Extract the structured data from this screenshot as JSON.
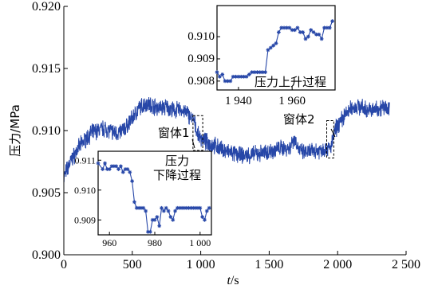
{
  "chart_data": [
    {
      "type": "line",
      "xlabel_italic": "t",
      "xlabel_unit": "/s",
      "ylabel": "压力/MPa",
      "xlim": [
        0,
        2500
      ],
      "ylim": [
        0.9,
        0.92
      ],
      "x_ticks": [
        0,
        500,
        1000,
        1500,
        2000,
        2500
      ],
      "x_tick_labels": [
        "0",
        "500",
        "1 000",
        "1 500",
        "2 000",
        "2 500"
      ],
      "y_ticks": [
        0.9,
        0.905,
        0.91,
        0.915,
        0.92
      ],
      "y_tick_labels": [
        "0.900",
        "0.905",
        "0.910",
        "0.915",
        "0.920"
      ],
      "series": [
        {
          "color": "#2747a8",
          "x": [
            0,
            20,
            50,
            100,
            150,
            200,
            250,
            300,
            350,
            400,
            450,
            500,
            550,
            600,
            650,
            700,
            750,
            800,
            850,
            900,
            950,
            980,
            1000,
            1050,
            1100,
            1150,
            1200,
            1250,
            1300,
            1350,
            1400,
            1450,
            1500,
            1550,
            1600,
            1650,
            1680,
            1700,
            1720,
            1750,
            1800,
            1850,
            1900,
            1950,
            1960,
            1980,
            2000,
            2050,
            2100,
            2150,
            2200,
            2250,
            2300,
            2350,
            2380
          ],
          "y": [
            0.9062,
            0.9068,
            0.9075,
            0.9085,
            0.9092,
            0.9098,
            0.91,
            0.9102,
            0.9099,
            0.9098,
            0.9102,
            0.911,
            0.9118,
            0.9122,
            0.912,
            0.9118,
            0.9119,
            0.9116,
            0.9117,
            0.9114,
            0.9108,
            0.9096,
            0.9094,
            0.909,
            0.9088,
            0.9085,
            0.9083,
            0.9081,
            0.908,
            0.908,
            0.9081,
            0.9082,
            0.9083,
            0.9085,
            0.9086,
            0.9086,
            0.9094,
            0.909,
            0.9084,
            0.9082,
            0.9083,
            0.9084,
            0.9085,
            0.9086,
            0.909,
            0.91,
            0.9104,
            0.9112,
            0.9118,
            0.912,
            0.9117,
            0.9116,
            0.9118,
            0.9119,
            0.9118
          ]
        }
      ],
      "annotations": [
        {
          "text": "窗体1",
          "x_range": [
            955,
            1003
          ]
        },
        {
          "text": "窗体2",
          "x_range": [
            1932,
            1972
          ]
        }
      ]
    },
    {
      "type": "line",
      "inset": "lower",
      "text": [
        "压力",
        "下降过程"
      ],
      "xlim": [
        955,
        1005
      ],
      "ylim": [
        0.9085,
        0.9113
      ],
      "x_ticks": [
        960,
        980,
        1000
      ],
      "x_tick_labels": [
        "960",
        "980",
        "1 000"
      ],
      "y_ticks": [
        0.909,
        0.91,
        0.911
      ],
      "y_tick_labels": [
        "0.909",
        "0.910",
        "0.911"
      ],
      "series": [
        {
          "color": "#2747a8",
          "marker": "star",
          "x": [
            955,
            957,
            958,
            959,
            960,
            961,
            962,
            963,
            964,
            965,
            966,
            967,
            968,
            969,
            970,
            971,
            972,
            973,
            974,
            975,
            976,
            977,
            978,
            979,
            980,
            981,
            982,
            983,
            984,
            985,
            986,
            987,
            988,
            989,
            990,
            991,
            992,
            993,
            994,
            995,
            996,
            997,
            998,
            999,
            1000,
            1001,
            1002,
            1003,
            1004
          ],
          "y": [
            0.9109,
            0.9107,
            0.9109,
            0.9107,
            0.9107,
            0.9108,
            0.9108,
            0.9108,
            0.9107,
            0.9108,
            0.9106,
            0.9107,
            0.9107,
            0.9106,
            0.9103,
            0.9096,
            0.9094,
            0.9094,
            0.9094,
            0.9094,
            0.9093,
            0.9086,
            0.9086,
            0.909,
            0.909,
            0.9091,
            0.9088,
            0.9094,
            0.9093,
            0.9094,
            0.9093,
            0.9091,
            0.909,
            0.9093,
            0.9094,
            0.9094,
            0.9094,
            0.9094,
            0.9094,
            0.9094,
            0.9094,
            0.9094,
            0.9094,
            0.9094,
            0.9094,
            0.9091,
            0.909,
            0.9093,
            0.9094
          ]
        }
      ]
    },
    {
      "type": "line",
      "inset": "upper",
      "text": [
        "压力上升过程"
      ],
      "xlim": [
        1932,
        1976
      ],
      "ylim": [
        0.9076,
        0.9114
      ],
      "x_ticks": [
        1940,
        1960
      ],
      "x_tick_labels": [
        "1 940",
        "1 960"
      ],
      "y_ticks": [
        0.908,
        0.909,
        0.91
      ],
      "y_tick_labels": [
        "0.908",
        "0.909",
        "0.910"
      ],
      "series": [
        {
          "color": "#2747a8",
          "marker": "star",
          "x": [
            1932,
            1933,
            1934,
            1935,
            1936,
            1937,
            1938,
            1939,
            1940,
            1941,
            1942,
            1943,
            1944,
            1945,
            1946,
            1947,
            1948,
            1949,
            1950,
            1951,
            1952,
            1953,
            1954,
            1955,
            1956,
            1957,
            1958,
            1959,
            1960,
            1961,
            1962,
            1963,
            1964,
            1965,
            1966,
            1967,
            1968,
            1969,
            1970,
            1971,
            1972,
            1973,
            1974,
            1975
          ],
          "y": [
            0.9084,
            0.9082,
            0.9083,
            0.908,
            0.908,
            0.908,
            0.9082,
            0.9082,
            0.9082,
            0.9082,
            0.9082,
            0.9082,
            0.9083,
            0.9084,
            0.9084,
            0.9084,
            0.9084,
            0.9084,
            0.9084,
            0.9094,
            0.9095,
            0.9096,
            0.9097,
            0.9102,
            0.9104,
            0.9104,
            0.9104,
            0.9104,
            0.9103,
            0.9103,
            0.9104,
            0.9102,
            0.9102,
            0.9099,
            0.91,
            0.9103,
            0.9102,
            0.9101,
            0.9101,
            0.9099,
            0.9104,
            0.9104,
            0.9104,
            0.9107
          ]
        }
      ]
    }
  ]
}
